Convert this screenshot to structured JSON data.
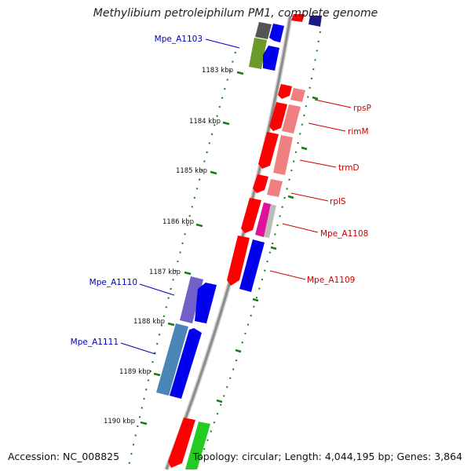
{
  "title": "Methylibium petroleiphilum PM1, complete genome",
  "footer": {
    "accession": "Accession: NC_008825",
    "topology": "Topology: circular; Length: 4,044,195 bp; Genes: 3,864"
  },
  "colors": {
    "backbone": "#8c8c8c",
    "tick": "#1a7a1a",
    "label_forward": "#cc0000",
    "label_reverse": "#0000bb",
    "red": "#ff0000",
    "pink": "#f08080",
    "blue": "#0000ee",
    "magenta": "#e0109a",
    "purple": "#7060c8",
    "steelblue": "#4a86b8",
    "olive": "#6a9a2a",
    "green": "#22cc22",
    "gray": "#555555",
    "navy": "#1a1a80"
  },
  "tick_labels": [
    "1183 kbp",
    "1184 kbp",
    "1185 kbp",
    "1186 kbp",
    "1187 kbp",
    "1188 kbp",
    "1189 kbp",
    "1190 kbp"
  ],
  "gene_labels": {
    "forward": [
      "rpsP",
      "rimM",
      "trmD",
      "rplS",
      "Mpe_A1108",
      "Mpe_A1109"
    ],
    "reverse": [
      "Mpe_A1103",
      "Mpe_A1110",
      "Mpe_A1111"
    ]
  }
}
